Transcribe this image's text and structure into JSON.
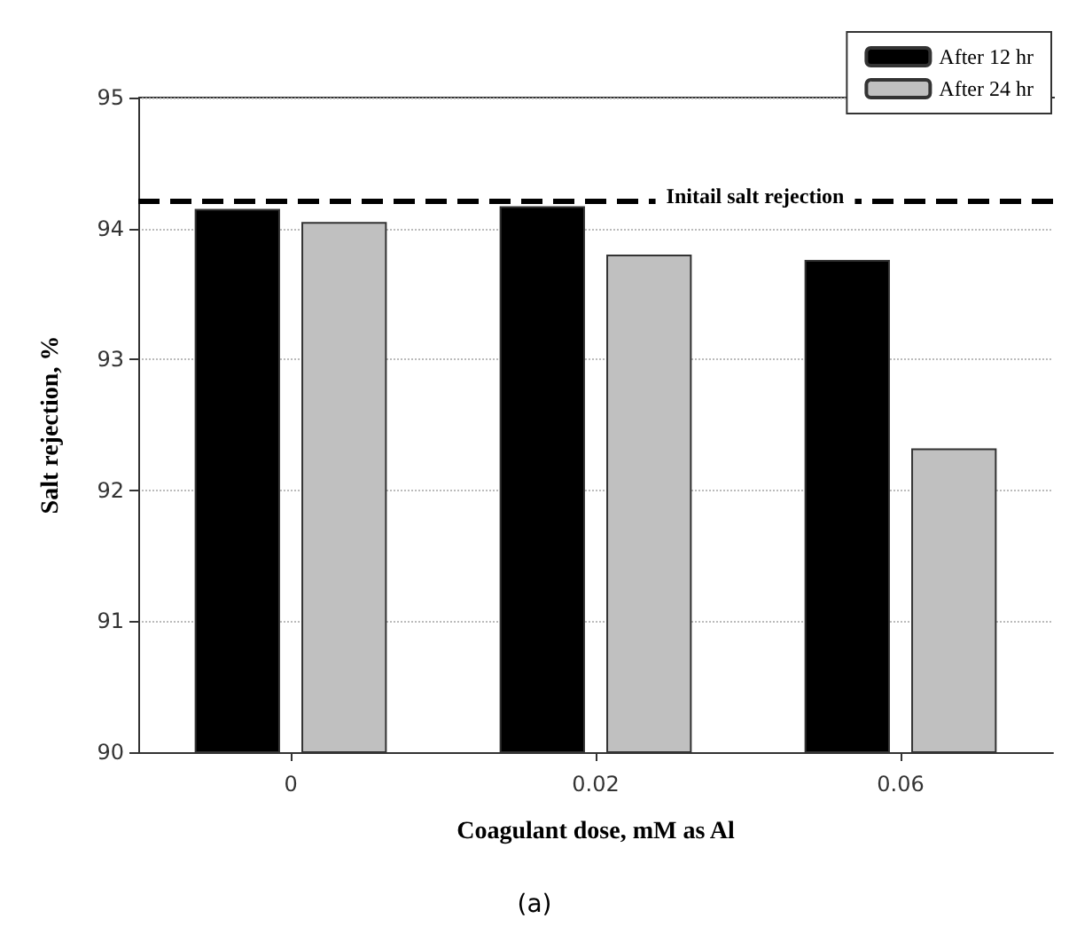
{
  "chart_data": {
    "type": "bar",
    "xlabel": "Coagulant dose, mM as Al",
    "ylabel": "Salt rejection, %",
    "categories": [
      "0",
      "0.02",
      "0.06"
    ],
    "series": [
      {
        "name": "After 12 hr",
        "color": "#000000",
        "values": [
          94.15,
          94.17,
          93.76
        ]
      },
      {
        "name": "After 24 hr",
        "color": "#c0c0c0",
        "values": [
          94.05,
          93.8,
          92.32
        ]
      }
    ],
    "ylim": [
      90,
      95
    ],
    "yticks": [
      90,
      91,
      92,
      93,
      94,
      95
    ],
    "grid": "y",
    "legend": "top right",
    "ref_lines": [
      {
        "axis": "y",
        "value": 94.21,
        "label": "Initail salt rejection",
        "color": "#000000",
        "line_style": "dashed"
      }
    ],
    "annotations": [
      "(a)"
    ]
  }
}
